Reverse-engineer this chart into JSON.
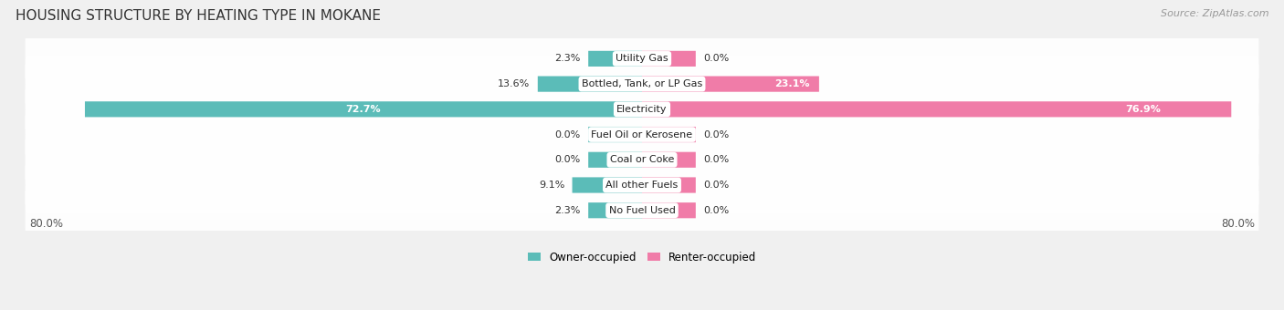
{
  "title": "HOUSING STRUCTURE BY HEATING TYPE IN MOKANE",
  "source": "Source: ZipAtlas.com",
  "categories": [
    "Utility Gas",
    "Bottled, Tank, or LP Gas",
    "Electricity",
    "Fuel Oil or Kerosene",
    "Coal or Coke",
    "All other Fuels",
    "No Fuel Used"
  ],
  "owner_values": [
    2.3,
    13.6,
    72.7,
    0.0,
    0.0,
    9.1,
    2.3
  ],
  "renter_values": [
    0.0,
    23.1,
    76.9,
    0.0,
    0.0,
    0.0,
    0.0
  ],
  "owner_color": "#5bbcb8",
  "renter_color": "#f07ca8",
  "axis_min": -80.0,
  "axis_max": 80.0,
  "axis_label_left": "80.0%",
  "axis_label_right": "80.0%",
  "background_color": "#f0f0f0",
  "row_bg_color": "#e8e8e8",
  "title_fontsize": 11,
  "source_fontsize": 8,
  "label_fontsize": 8,
  "cat_fontsize": 8,
  "legend_labels": [
    "Owner-occupied",
    "Renter-occupied"
  ],
  "min_bar_width": 7.0
}
